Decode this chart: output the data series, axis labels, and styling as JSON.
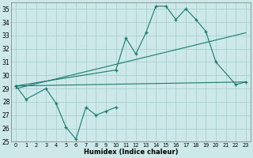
{
  "xlabel": "Humidex (Indice chaleur)",
  "color": "#1a7a6e",
  "bg_color": "#cce8e8",
  "grid_color": "#aacfcf",
  "ylim": [
    25,
    35.5
  ],
  "xlim": [
    -0.5,
    23.5
  ],
  "yticks": [
    25,
    26,
    27,
    28,
    29,
    30,
    31,
    32,
    33,
    34,
    35
  ],
  "xticks": [
    0,
    1,
    2,
    3,
    4,
    5,
    6,
    7,
    8,
    9,
    10,
    11,
    12,
    13,
    14,
    15,
    16,
    17,
    18,
    19,
    20,
    21,
    22,
    23
  ],
  "series1_x": [
    0,
    1,
    3,
    4,
    5,
    6,
    7,
    8,
    9,
    10
  ],
  "series1_y": [
    29.2,
    28.2,
    29.0,
    27.9,
    26.1,
    25.2,
    27.6,
    27.0,
    27.3,
    27.6
  ],
  "series2_x": [
    0,
    10,
    11,
    12,
    13,
    14,
    15,
    16,
    17,
    18,
    19,
    20,
    22,
    23
  ],
  "series2_y": [
    29.2,
    30.4,
    32.8,
    31.6,
    33.2,
    35.2,
    35.2,
    34.2,
    35.0,
    34.2,
    33.3,
    31.0,
    29.3,
    29.5
  ],
  "trend1_x": [
    0,
    23
  ],
  "trend1_y": [
    29.2,
    29.5
  ],
  "trend2_x": [
    0,
    23
  ],
  "trend2_y": [
    29.0,
    33.2
  ]
}
